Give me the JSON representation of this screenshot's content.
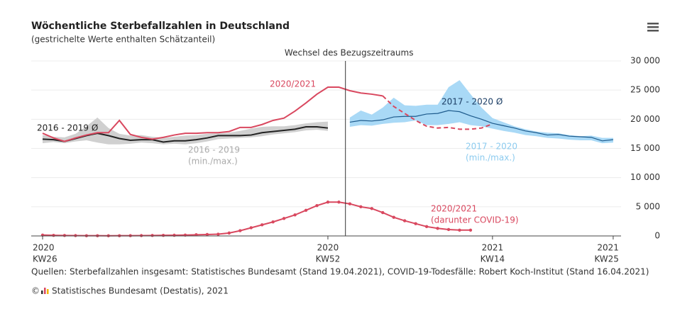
{
  "chart_data": {
    "type": "line",
    "title": "Wöchentliche Sterbefallzahlen in Deutschland",
    "subtitle": "(gestrichelte Werte enthalten Schätzanteil)",
    "reference_line": {
      "label": "Wechsel des Bezugszeitraums"
    },
    "categories": [
      "KW26",
      null,
      null,
      null,
      null,
      null,
      null,
      null,
      null,
      null,
      null,
      null,
      null,
      null,
      null,
      null,
      null,
      null,
      null,
      null,
      null,
      null,
      null,
      null,
      null,
      null,
      "KW52",
      null,
      null,
      null,
      null,
      null,
      null,
      null,
      null,
      null,
      null,
      null,
      null,
      null,
      null,
      "KW14",
      null,
      null,
      null,
      null,
      null,
      null,
      null,
      null,
      null,
      null,
      "KW25"
    ],
    "category_years": [
      "2020",
      null,
      null,
      null,
      null,
      null,
      null,
      null,
      null,
      null,
      null,
      null,
      null,
      null,
      null,
      null,
      null,
      null,
      null,
      null,
      null,
      null,
      null,
      null,
      null,
      null,
      "2020",
      null,
      null,
      null,
      null,
      null,
      null,
      null,
      null,
      null,
      null,
      null,
      null,
      null,
      null,
      "2021",
      null,
      null,
      null,
      null,
      null,
      null,
      null,
      null,
      null,
      null,
      "2021"
    ],
    "ylim": [
      0,
      30000
    ],
    "yticks": [
      0,
      {
        "value": 5000,
        "label": "5 000"
      },
      {
        "value": 10000,
        "label": "10 000"
      },
      {
        "value": 15000,
        "label": "15 000"
      },
      {
        "value": 20000,
        "label": "20 000"
      },
      {
        "value": 25000,
        "label": "25 000"
      },
      {
        "value": 30000,
        "label": "30 000"
      }
    ],
    "grid": true,
    "series": [
      {
        "name": "2016 - 2019",
        "subname": "(min./max.)",
        "kind": "band",
        "color": "#d0d0d0",
        "label_color": "#aaaaaa",
        "min": [
          15900,
          16100,
          15900,
          16200,
          16400,
          16000,
          15700,
          15700,
          15800,
          16000,
          15900,
          15700,
          15800,
          15700,
          15900,
          16200,
          16600,
          16700,
          16800,
          16900,
          17100,
          17400,
          17600,
          17800,
          18100,
          18200,
          18000,
          null,
          null,
          null,
          null,
          null,
          null,
          null,
          null,
          null,
          null,
          null,
          null,
          null,
          null,
          null,
          null,
          null,
          null,
          null,
          null,
          null,
          null,
          null,
          null,
          null,
          null
        ],
        "max": [
          17300,
          17000,
          16900,
          17500,
          18800,
          20300,
          18500,
          17500,
          17200,
          17300,
          17000,
          16800,
          17000,
          17200,
          17300,
          17500,
          17600,
          17700,
          18000,
          18400,
          18700,
          18800,
          18800,
          19000,
          19300,
          19500,
          19600,
          null,
          null,
          null,
          null,
          null,
          null,
          null,
          null,
          null,
          null,
          null,
          null,
          null,
          null,
          null,
          null,
          null,
          null,
          null,
          null,
          null,
          null,
          null,
          null,
          null,
          null
        ]
      },
      {
        "name": "2017 - 2020",
        "subname": "(min./max.)",
        "kind": "band",
        "color": "#a9d9f6",
        "label_color": "#8ccbef",
        "min": [
          null,
          null,
          null,
          null,
          null,
          null,
          null,
          null,
          null,
          null,
          null,
          null,
          null,
          null,
          null,
          null,
          null,
          null,
          null,
          null,
          null,
          null,
          null,
          null,
          null,
          null,
          null,
          null,
          18700,
          19000,
          18900,
          19200,
          19400,
          19500,
          19800,
          19000,
          19000,
          19200,
          19500,
          19000,
          18800,
          18400,
          18000,
          17700,
          17300,
          17100,
          16800,
          16700,
          16500,
          16400,
          16400,
          15900,
          16000
        ],
        "max": [
          null,
          null,
          null,
          null,
          null,
          null,
          null,
          null,
          null,
          null,
          null,
          null,
          null,
          null,
          null,
          null,
          null,
          null,
          null,
          null,
          null,
          null,
          null,
          null,
          null,
          null,
          null,
          null,
          20300,
          21500,
          20800,
          22000,
          23700,
          22400,
          22300,
          22500,
          22500,
          25500,
          26700,
          24300,
          22000,
          20200,
          19500,
          18800,
          18300,
          17900,
          17700,
          17600,
          17300,
          17100,
          17200,
          16800,
          16800
        ]
      },
      {
        "name": "2016 - 2019 Ø",
        "kind": "line",
        "color": "#222222",
        "label_color": "#222222",
        "values": [
          16600,
          16500,
          16200,
          16700,
          17200,
          17600,
          17200,
          16700,
          16400,
          16500,
          16500,
          16100,
          16300,
          16300,
          16500,
          16800,
          17200,
          17200,
          17200,
          17300,
          17700,
          17900,
          18100,
          18300,
          18700,
          18700,
          18500,
          null,
          null,
          null,
          null,
          null,
          null,
          null,
          null,
          null,
          null,
          null,
          null,
          null,
          null,
          null,
          null,
          null,
          null,
          null,
          null,
          null,
          null,
          null,
          null,
          null,
          null
        ]
      },
      {
        "name": "2017 - 2020 Ø",
        "kind": "line",
        "color": "#1d5a8c",
        "label_color": "#1d3f66",
        "values": [
          null,
          null,
          null,
          null,
          null,
          null,
          null,
          null,
          null,
          null,
          null,
          null,
          null,
          null,
          null,
          null,
          null,
          null,
          null,
          null,
          null,
          null,
          null,
          null,
          null,
          null,
          null,
          null,
          19500,
          19800,
          19700,
          19900,
          20400,
          20500,
          20500,
          20900,
          21000,
          21500,
          21300,
          20600,
          20000,
          19300,
          18900,
          18500,
          18000,
          17700,
          17300,
          17400,
          17100,
          17000,
          16900,
          16300,
          16500
        ]
      },
      {
        "name": "2020/2021",
        "kind": "line",
        "color": "#d9485f",
        "label_color": "#d9485f",
        "values": [
          17600,
          16800,
          16200,
          16800,
          17300,
          17700,
          17700,
          19800,
          17400,
          16900,
          16600,
          16900,
          17300,
          17600,
          17600,
          17700,
          17700,
          17900,
          18600,
          18600,
          19100,
          19800,
          20200,
          21400,
          22800,
          24300,
          25500,
          25500,
          24900,
          24500,
          24300,
          24000,
          null,
          null,
          null,
          null,
          null,
          null,
          null,
          null,
          null,
          null,
          null,
          null,
          null,
          null,
          null,
          null,
          null,
          null,
          null,
          null,
          null
        ]
      },
      {
        "kind": "line",
        "dashed": true,
        "color": "#d9485f",
        "values": [
          null,
          null,
          null,
          null,
          null,
          null,
          null,
          null,
          null,
          null,
          null,
          null,
          null,
          null,
          null,
          null,
          null,
          null,
          null,
          null,
          null,
          null,
          null,
          null,
          null,
          null,
          null,
          null,
          null,
          null,
          null,
          24000,
          22200,
          21000,
          19800,
          18800,
          18500,
          18600,
          18300,
          18300,
          18500,
          19200,
          null,
          null,
          null,
          null,
          null,
          null,
          null,
          null,
          null,
          null,
          null
        ]
      },
      {
        "name": "2020/2021",
        "subname": "(darunter COVID-19)",
        "kind": "line",
        "markers": true,
        "color": "#d9485f",
        "label_color": "#d9485f",
        "values": [
          150,
          100,
          80,
          60,
          40,
          40,
          30,
          40,
          50,
          60,
          80,
          100,
          120,
          150,
          200,
          250,
          300,
          500,
          900,
          1400,
          1900,
          2400,
          3000,
          3600,
          4400,
          5200,
          5800,
          5800,
          5500,
          5000,
          4700,
          4000,
          3200,
          2600,
          2100,
          1600,
          1300,
          1100,
          1000,
          1000,
          null,
          null,
          null,
          null,
          null,
          null,
          null,
          null,
          null,
          null,
          null,
          null,
          null
        ]
      }
    ],
    "source": "Quellen: Sterbefallzahlen insgesamt: Statistisches Bundesamt (Stand 19.04.2021), COVID-19-Todesfälle: Robert Koch-Institut (Stand 16.04.2021)",
    "copyright": "Statistisches Bundesamt (Destatis), 2021"
  }
}
